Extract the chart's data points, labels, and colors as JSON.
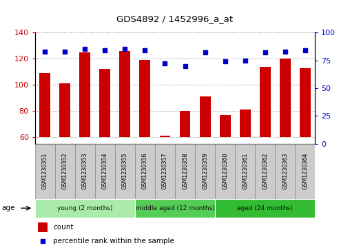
{
  "title": "GDS4892 / 1452996_a_at",
  "samples": [
    "GSM1230351",
    "GSM1230352",
    "GSM1230353",
    "GSM1230354",
    "GSM1230355",
    "GSM1230356",
    "GSM1230357",
    "GSM1230358",
    "GSM1230359",
    "GSM1230360",
    "GSM1230361",
    "GSM1230362",
    "GSM1230363",
    "GSM1230364"
  ],
  "counts": [
    109,
    101,
    125,
    112,
    126,
    119,
    61,
    80,
    91,
    77,
    81,
    114,
    120,
    113
  ],
  "percentiles": [
    83,
    83,
    85,
    84,
    85,
    84,
    72,
    70,
    82,
    74,
    75,
    82,
    83,
    84
  ],
  "ylim_left": [
    55,
    140
  ],
  "ylim_right": [
    0,
    100
  ],
  "yticks_left": [
    60,
    80,
    100,
    120,
    140
  ],
  "yticks_right": [
    0,
    25,
    50,
    75,
    100
  ],
  "bar_color": "#cc0000",
  "dot_color": "#0000cc",
  "bar_bottom": 60,
  "groups": [
    {
      "label": "young (2 months)",
      "start": 0,
      "end": 5
    },
    {
      "label": "middle aged (12 months)",
      "start": 5,
      "end": 9
    },
    {
      "label": "aged (24 months)",
      "start": 9,
      "end": 14
    }
  ],
  "group_colors": [
    "#aaeaaa",
    "#55cc55",
    "#33bb33"
  ],
  "legend_count_label": "count",
  "legend_pct_label": "percentile rank within the sample",
  "grid_color": "#888888",
  "tick_label_color_left": "#cc0000",
  "tick_label_color_right": "#0000cc",
  "sample_box_color": "#cccccc",
  "sample_box_line_color": "#888888"
}
